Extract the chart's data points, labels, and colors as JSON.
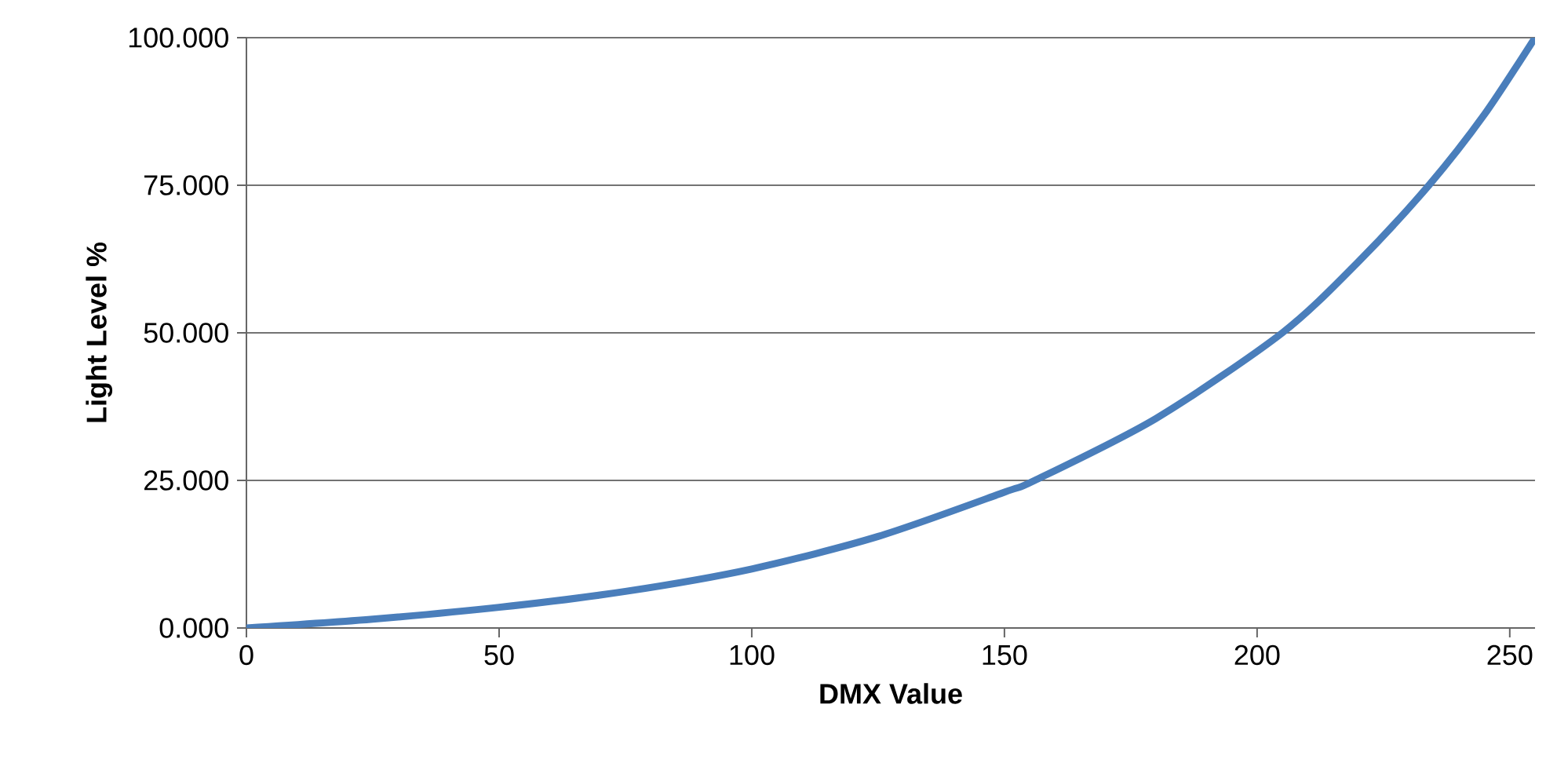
{
  "chart_data": {
    "type": "line",
    "xlabel": "DMX Value",
    "ylabel": "Light Level %",
    "x": [
      0,
      25,
      50,
      75,
      100,
      125,
      150,
      156,
      180,
      205,
      220,
      234,
      245,
      255
    ],
    "series": [
      {
        "color": "#4a7ebb",
        "values": [
          0,
          1.5,
          3.5,
          6.2,
          10,
          15.5,
          23,
          25,
          35.5,
          50,
          62,
          75,
          87,
          100
        ]
      }
    ],
    "xlim": [
      0,
      255
    ],
    "xticks": [
      0,
      50,
      100,
      150,
      200,
      250
    ],
    "ylim": [
      0,
      100
    ],
    "yticks": [
      {
        "value": 0,
        "label": "0.000"
      },
      {
        "value": 25,
        "label": "25.000"
      },
      {
        "value": 50,
        "label": "50.000"
      },
      {
        "value": 75,
        "label": "75.000"
      },
      {
        "value": 100,
        "label": "100.000"
      }
    ],
    "grid": "y",
    "marker": "none",
    "line_style": "solid"
  }
}
